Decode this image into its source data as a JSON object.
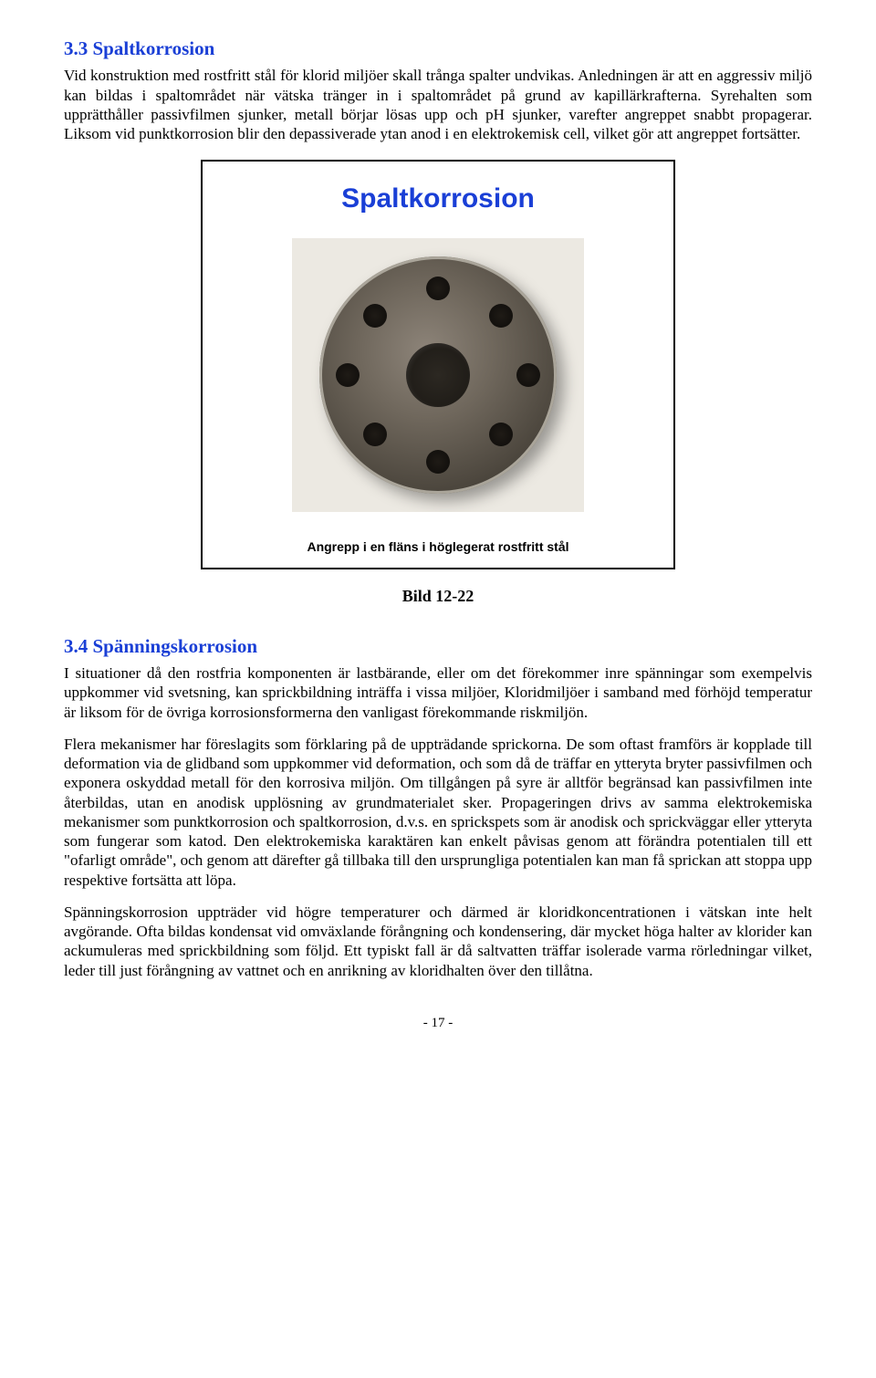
{
  "colors": {
    "figure_title": "#1a3fd6",
    "heading": "#1a3fd6",
    "text": "#000000",
    "bg": "#ffffff"
  },
  "section1": {
    "heading": "3.3 Spaltkorrosion",
    "p1": "Vid konstruktion med rostfritt stål för klorid miljöer skall trånga spalter undvikas. Anledningen är att en aggressiv miljö kan bildas i spaltområdet när vätska tränger in i spaltområdet på grund av kapillärkrafterna. Syrehalten som upprätthåller passivfilmen sjunker, metall börjar lösas upp och pH sjunker, varefter angreppet snabbt propagerar. Liksom vid punktkorrosion blir den depassiverade ytan anod i en elektrokemisk cell, vilket gör att angreppet fortsätter."
  },
  "figure": {
    "title": "Spaltkorrosion",
    "image_alt": "corroded-flange-photo",
    "caption": "Angrepp i en fläns i höglegerat rostfritt stål",
    "label": "Bild 12-22"
  },
  "section2": {
    "heading": "3.4 Spänningskorrosion",
    "p1": "I situationer då den rostfria komponenten är lastbärande, eller om det förekommer inre spänningar som exempelvis uppkommer vid svetsning, kan sprickbildning inträffa i vissa miljöer, Kloridmiljöer i samband med förhöjd temperatur är liksom för de övriga korrosionsformerna den vanligast förekommande riskmiljön.",
    "p2": "Flera mekanismer har föreslagits som förklaring på de uppträdande sprickorna. De som oftast framförs är kopplade till deformation via de glidband som uppkommer vid deformation, och som då de träffar en ytteryta bryter passivfilmen och exponera oskyddad metall för den korrosiva miljön. Om tillgången på syre är alltför begränsad kan passivfilmen inte återbildas, utan en anodisk upplösning av grundmaterialet sker. Propageringen drivs av samma elektrokemiska mekanismer som punktkorrosion och spaltkorrosion, d.v.s. en sprickspets som är anodisk och sprickväggar eller ytteryta som fungerar som katod. Den elektrokemiska karaktären kan enkelt påvisas genom att förändra potentialen till ett \"ofarligt område\", och genom att därefter gå tillbaka till den ursprungliga potentialen kan man få sprickan att stoppa upp respektive fortsätta att löpa.",
    "p3": " Spänningskorrosion uppträder vid högre temperaturer och därmed är kloridkoncentrationen i vätskan inte helt avgörande. Ofta bildas kondensat vid omväxlande förångning och kondensering, där mycket höga halter av klorider kan ackumuleras med sprickbildning som följd. Ett typiskt fall är då saltvatten träffar isolerade varma rörledningar vilket, leder till just förångning av vattnet och en anrikning av kloridhalten över den tillåtna."
  },
  "page_number": "- 17 -"
}
